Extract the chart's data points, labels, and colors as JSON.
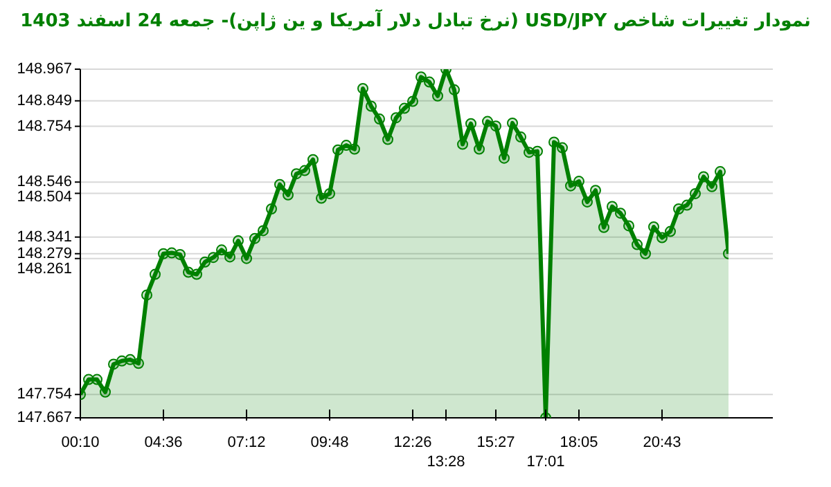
{
  "chart_data": {
    "type": "area",
    "title": "نمودار تغییرات شاخص USD/JPY (نرخ تبادل دلار آمریکا و ین ژاپن)- جمعه  24 اسفند 1403",
    "categories": [
      "00:10",
      null,
      null,
      null,
      null,
      null,
      null,
      null,
      null,
      null,
      "04:36",
      null,
      null,
      null,
      null,
      null,
      null,
      null,
      null,
      null,
      "07:12",
      null,
      null,
      null,
      null,
      null,
      null,
      null,
      null,
      null,
      "09:48",
      null,
      null,
      null,
      null,
      null,
      null,
      null,
      null,
      null,
      "12:26",
      null,
      null,
      null,
      "13:28",
      null,
      null,
      null,
      null,
      null,
      "15:27",
      null,
      null,
      null,
      null,
      null,
      "17:01",
      null,
      null,
      null,
      "18:05",
      null,
      null,
      null,
      null,
      null,
      null,
      null,
      null,
      null,
      "20:43",
      null,
      null,
      null,
      null,
      null,
      null,
      null,
      null
    ],
    "series": [
      {
        "color": "#008000",
        "values": [
          147.754,
          147.81,
          147.81,
          147.763,
          147.867,
          147.879,
          147.884,
          147.87,
          148.125,
          148.202,
          148.279,
          148.282,
          148.276,
          148.21,
          148.202,
          148.248,
          148.265,
          148.293,
          148.267,
          148.327,
          148.261,
          148.336,
          148.365,
          148.446,
          148.537,
          148.498,
          148.577,
          148.589,
          148.63,
          148.486,
          148.503,
          148.666,
          148.683,
          148.669,
          148.895,
          148.829,
          148.781,
          148.705,
          148.786,
          148.821,
          148.847,
          148.938,
          148.919,
          148.867,
          148.967,
          148.89,
          148.687,
          148.764,
          148.669,
          148.772,
          148.755,
          148.635,
          148.766,
          148.714,
          148.657,
          148.661,
          147.667,
          148.695,
          148.674,
          148.532,
          148.549,
          148.472,
          148.515,
          148.377,
          148.455,
          148.43,
          148.383,
          148.313,
          148.279,
          148.379,
          148.339,
          148.362,
          148.446,
          148.46,
          148.503,
          148.566,
          148.529,
          148.585,
          148.279
        ]
      }
    ],
    "ylim": [
      147.667,
      148.967
    ],
    "yticks": [
      147.667,
      147.754,
      148.261,
      148.279,
      148.341,
      148.504,
      148.546,
      148.754,
      148.849,
      148.967
    ],
    "grid": "y",
    "marker": "circle",
    "legend": false
  }
}
